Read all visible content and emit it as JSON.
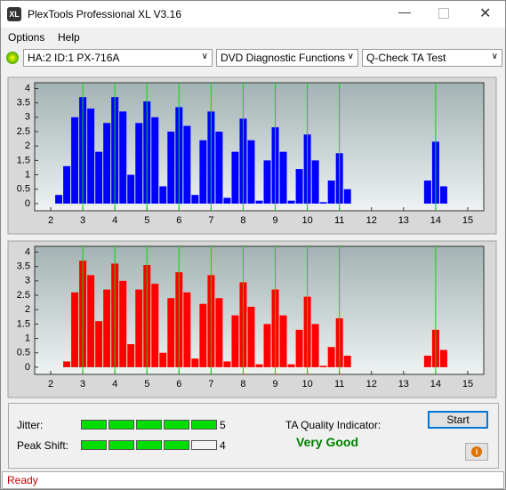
{
  "window": {
    "title": "PlexTools Professional XL V3.16",
    "icon_label": "XL"
  },
  "menu": [
    "Options",
    "Help"
  ],
  "toolbar": {
    "drive": "HA:2 ID:1  PX-716A",
    "function": "DVD Diagnostic Functions",
    "test": "Q-Check TA Test"
  },
  "chart_data": [
    {
      "type": "bar",
      "color": "#0000ff",
      "x": [
        2,
        2.25,
        2.5,
        2.75,
        3,
        3.25,
        3.5,
        3.75,
        4,
        4.25,
        4.5,
        4.75,
        5,
        5.25,
        5.5,
        5.75,
        6,
        6.25,
        6.5,
        6.75,
        7,
        7.25,
        7.5,
        7.75,
        8,
        8.25,
        8.5,
        8.75,
        9,
        9.25,
        9.5,
        9.75,
        10,
        10.25,
        10.5,
        10.75,
        11,
        11.25,
        11.5,
        11.75,
        12,
        12.25,
        12.5,
        12.75,
        13,
        13.25,
        13.5,
        13.75,
        14,
        14.25,
        14.5
      ],
      "values": [
        0,
        0.3,
        1.3,
        3.0,
        3.7,
        3.3,
        1.8,
        2.8,
        3.7,
        3.2,
        1.0,
        2.8,
        3.55,
        3.0,
        0.6,
        2.5,
        3.35,
        2.7,
        0.3,
        2.2,
        3.2,
        2.5,
        0.2,
        1.8,
        2.95,
        2.2,
        0.1,
        1.5,
        2.65,
        1.8,
        0.1,
        1.2,
        2.4,
        1.5,
        0.05,
        0.8,
        1.75,
        0.5,
        0,
        0,
        0,
        0,
        0,
        0,
        0,
        0,
        0,
        0.8,
        2.15,
        0.6,
        0
      ],
      "xlim": [
        1.5,
        15.5
      ],
      "ylim": [
        -0.25,
        4.2
      ],
      "xticks": [
        2,
        3,
        4,
        5,
        6,
        7,
        8,
        9,
        10,
        11,
        12,
        13,
        14,
        15
      ],
      "yticks": [
        0,
        0.5,
        1,
        1.5,
        2,
        2.5,
        3,
        3.5,
        4
      ],
      "marker_lines": [
        3,
        4,
        5,
        6,
        7,
        8,
        9,
        10,
        11,
        14
      ],
      "marker_color": "#00dd00"
    },
    {
      "type": "bar",
      "color": "#ff0000",
      "x": [
        2,
        2.25,
        2.5,
        2.75,
        3,
        3.25,
        3.5,
        3.75,
        4,
        4.25,
        4.5,
        4.75,
        5,
        5.25,
        5.5,
        5.75,
        6,
        6.25,
        6.5,
        6.75,
        7,
        7.25,
        7.5,
        7.75,
        8,
        8.25,
        8.5,
        8.75,
        9,
        9.25,
        9.5,
        9.75,
        10,
        10.25,
        10.5,
        10.75,
        11,
        11.25,
        11.5,
        11.75,
        12,
        12.25,
        12.5,
        12.75,
        13,
        13.25,
        13.5,
        13.75,
        14,
        14.25,
        14.5
      ],
      "values": [
        0,
        0,
        0.2,
        2.6,
        3.7,
        3.2,
        1.6,
        2.7,
        3.6,
        3.0,
        0.8,
        2.7,
        3.55,
        2.9,
        0.5,
        2.4,
        3.3,
        2.6,
        0.3,
        2.2,
        3.2,
        2.4,
        0.2,
        1.8,
        2.95,
        2.1,
        0.1,
        1.5,
        2.7,
        1.8,
        0.1,
        1.3,
        2.45,
        1.5,
        0.05,
        0.7,
        1.7,
        0.4,
        0,
        0,
        0,
        0,
        0,
        0,
        0,
        0,
        0,
        0.4,
        1.3,
        0.6,
        0
      ],
      "xlim": [
        1.5,
        15.5
      ],
      "ylim": [
        -0.25,
        4.2
      ],
      "xticks": [
        2,
        3,
        4,
        5,
        6,
        7,
        8,
        9,
        10,
        11,
        12,
        13,
        14,
        15
      ],
      "yticks": [
        0,
        0.5,
        1,
        1.5,
        2,
        2.5,
        3,
        3.5,
        4
      ],
      "marker_lines": [
        3,
        4,
        5,
        6,
        7,
        8,
        9,
        10,
        11,
        14
      ],
      "marker_color": "#00dd00"
    }
  ],
  "results": {
    "jitter_label": "Jitter:",
    "jitter": 5,
    "peak_shift_label": "Peak Shift:",
    "peak_shift": 4,
    "meter_max": 5,
    "quality_label": "TA Quality Indicator:",
    "quality": "Very Good",
    "start": "Start"
  },
  "status": "Ready"
}
